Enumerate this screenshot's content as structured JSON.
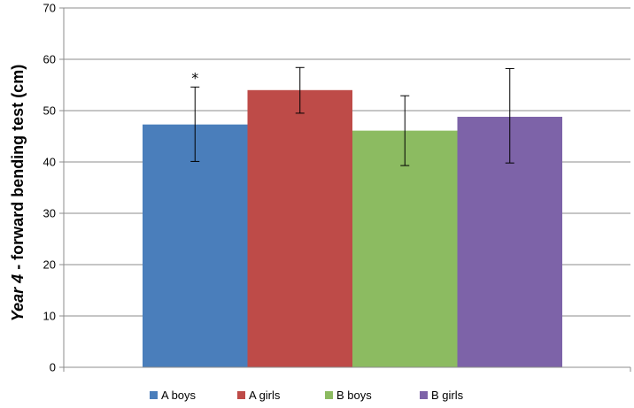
{
  "chart_data": {
    "type": "bar",
    "title": "",
    "xlabel": "",
    "ylabel": {
      "italic_part": "Year 4",
      "rest": " - forward bending test (cm)"
    },
    "ylim": [
      0,
      70
    ],
    "yticks": [
      0,
      10,
      20,
      30,
      40,
      50,
      60,
      70
    ],
    "grid": true,
    "legend_position": "bottom",
    "series": [
      {
        "name": "A boys",
        "value": 47.3,
        "error_low": 40.1,
        "error_high": 54.6,
        "color": "#4a7ebb",
        "annotation": "*"
      },
      {
        "name": "A girls",
        "value": 54.0,
        "error_low": 49.5,
        "error_high": 58.4,
        "color": "#be4b48",
        "annotation": ""
      },
      {
        "name": "B boys",
        "value": 46.1,
        "error_low": 39.3,
        "error_high": 52.9,
        "color": "#8cbb61",
        "annotation": ""
      },
      {
        "name": "B girls",
        "value": 48.8,
        "error_low": 39.8,
        "error_high": 58.2,
        "color": "#7d63a8",
        "annotation": ""
      }
    ]
  }
}
